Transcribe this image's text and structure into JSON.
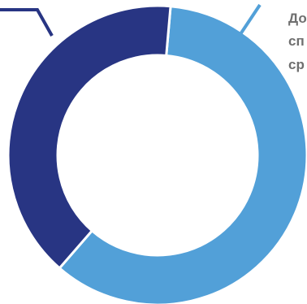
{
  "chart_data": {
    "type": "pie",
    "style": "donut",
    "title": "",
    "slices": [
      {
        "value": 60,
        "color": "#52a0d8"
      },
      {
        "value": 40,
        "color": "#283583"
      }
    ],
    "annotation_lines": [
      "До",
      "сп",
      "ср"
    ]
  }
}
